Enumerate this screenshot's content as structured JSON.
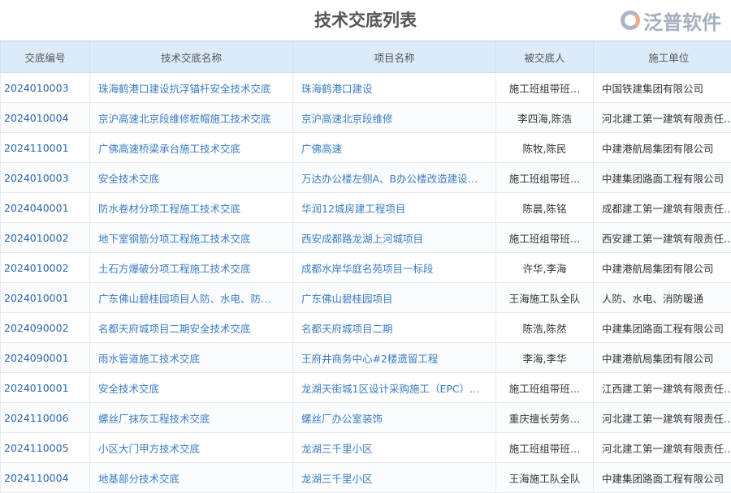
{
  "title": "技术交底列表",
  "columns": [
    "交底编号",
    "技术交底名称",
    "项目名称",
    "被交底人",
    "施工单位"
  ],
  "rows": [
    [
      "2024010003",
      "珠海鹤港口建设抗浮锚杆安全技术交底",
      "珠海鹤港口建设",
      "施工班组带班…",
      "中国铁建集团有限公司"
    ],
    [
      "2024010004",
      "京沪高速北京段维修桩帽施工技术交底",
      "京沪高速北京段维修",
      "李四海,陈浩",
      "河北建工第一建筑有限责任…"
    ],
    [
      "2024110001",
      "广佛高速桥梁承台施工技术交底",
      "广佛高速",
      "陈牧,陈民",
      "中建港航局集团有限公司"
    ],
    [
      "2024010003",
      "安全技术交底",
      "万达办公楼左侧A、B办公楼改造建设…",
      "施工班组带班…",
      "中建集团路面工程有限公司"
    ],
    [
      "2024040001",
      "防水卷材分项工程施工技术交底",
      "华润12城房建工程项目",
      "陈晨,陈铭",
      "成都建工第一建筑有限责任…"
    ],
    [
      "2024010002",
      "地下室钢筋分项工程施工技术交底",
      "西安成都路龙湖上河城项目",
      "施工班组带班…",
      "西安建工第一建筑有限责任…"
    ],
    [
      "2024010002",
      "土石方爆破分项工程施工技术交底",
      "成都水岸华庭名苑项目一标段",
      "许华,李海",
      "中建港航局集团有限公司"
    ],
    [
      "2024010001",
      "广东佛山碧桂园项目人防、水电、防…",
      "广东佛山碧桂园项目",
      "王海施工队全队",
      "人防、水电、消防暖通"
    ],
    [
      "2024090002",
      "名都天府城项目二期安全技术交底",
      "名都天府城项目二期",
      "陈浩,陈然",
      "中建集团路面工程有限公司"
    ],
    [
      "2024090001",
      "雨水管道施工技术交底",
      "王府井商务中心#2楼遗留工程",
      "李海,李华",
      "中建港航局集团有限公司"
    ],
    [
      "2024010001",
      "安全技术交底",
      "龙湖天街城1区设计采购施工（EPC）…",
      "施工班组带班…",
      "江西建工第一建筑有限责任…"
    ],
    [
      "2024110006",
      "螺丝厂抹灰工程技术交底",
      "螺丝厂办公室装饰",
      "重庆擅长劳务…",
      "河北建工第一建筑有限责任…"
    ],
    [
      "2024110005",
      "小区大门甲方技术交底",
      "龙湖三千里小区",
      "施工班组带班…",
      "河北建工第一建筑有限责任…"
    ],
    [
      "2024110004",
      "地基部分技术交底",
      "龙湖三千里小区",
      "王海施工队全队",
      "中建集团路面工程有限公司"
    ]
  ],
  "watermark": "泛普软件"
}
